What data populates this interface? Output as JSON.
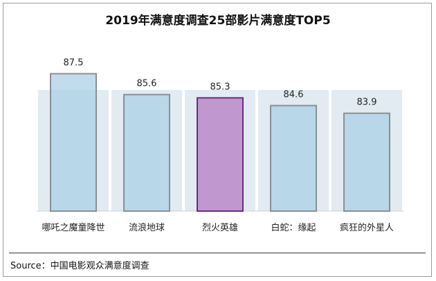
{
  "chart_data": {
    "type": "bar",
    "title": "2019年满意度调查25部影片满意度TOP5",
    "categories": [
      "哪吒之魔童降世",
      "流浪地球",
      "烈火英雄",
      "白蛇：缘起",
      "疯狂的外星人"
    ],
    "values": [
      87.5,
      85.6,
      85.3,
      84.6,
      83.9
    ],
    "ylim": [
      75,
      88.6
    ],
    "grid": false,
    "legend": "none"
  },
  "colors": {
    "bar_fill": "#a8cfe6",
    "bar_stroke": "#8a8f94",
    "highlight_fill": "#b77fc6",
    "highlight_stroke": "#6d2a7e",
    "poster_tint": "#c9dbe6",
    "axis": "#d0d0d0"
  },
  "highlight_index": 2,
  "source": "Source：中国电影观众满意度调查"
}
